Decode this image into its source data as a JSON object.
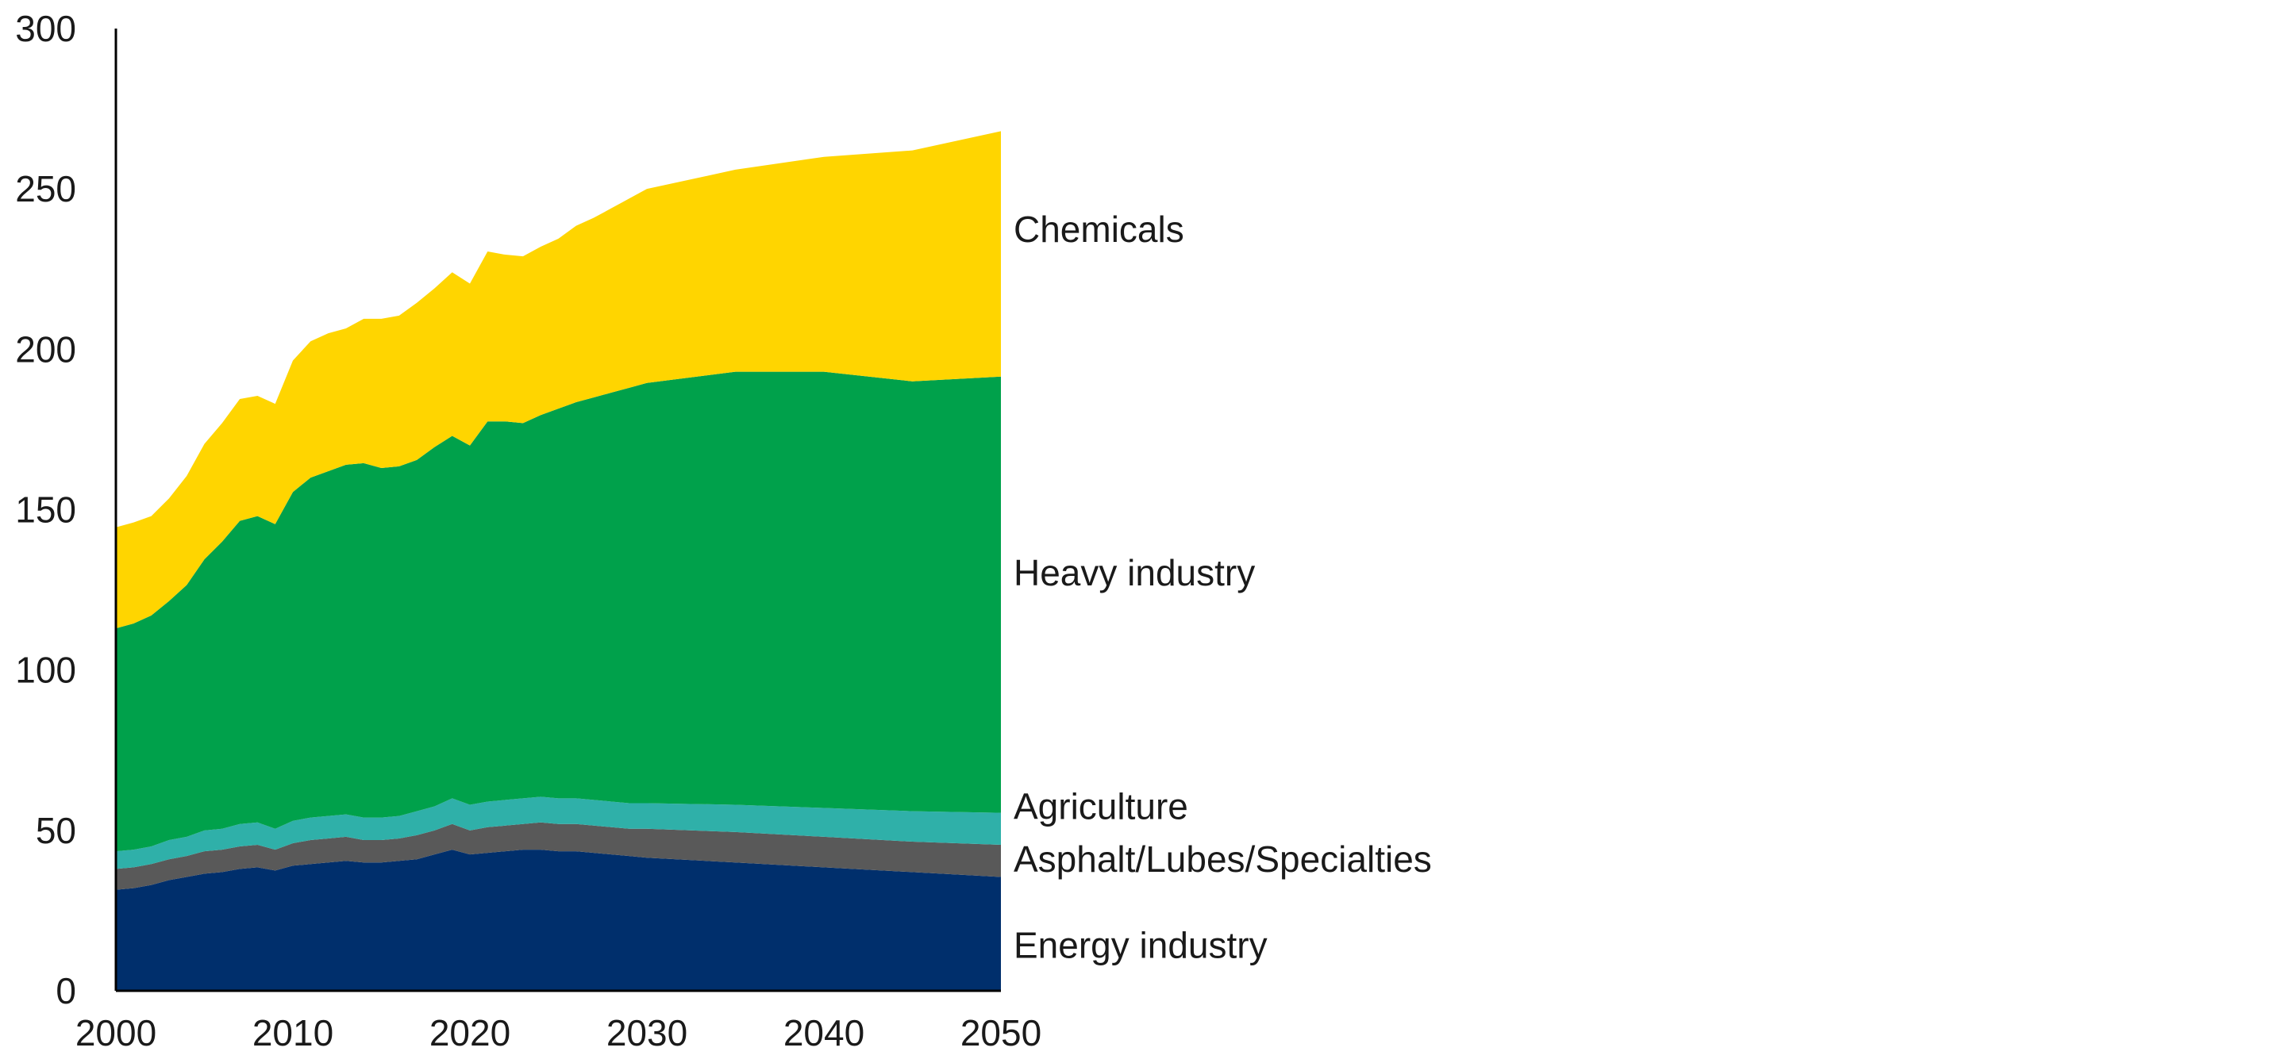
{
  "chart_data": {
    "type": "area",
    "stacked": true,
    "title": "",
    "xlabel": "",
    "ylabel": "",
    "xlim": [
      2000,
      2050
    ],
    "ylim": [
      0,
      300
    ],
    "grid": false,
    "legend": "direct labels at right end of areas",
    "x_ticks": [
      "2000",
      "2010",
      "2020",
      "2030",
      "2040",
      "2050"
    ],
    "y_ticks": [
      "0",
      "50",
      "100",
      "150",
      "200",
      "250",
      "300"
    ],
    "x_tick_values": [
      2000,
      2010,
      2020,
      2030,
      2040,
      2050
    ],
    "y_tick_values": [
      0,
      50,
      100,
      150,
      200,
      250,
      300
    ],
    "x": [
      2000,
      2001,
      2002,
      2003,
      2004,
      2005,
      2006,
      2007,
      2008,
      2009,
      2010,
      2011,
      2012,
      2013,
      2014,
      2015,
      2016,
      2017,
      2018,
      2019,
      2020,
      2021,
      2022,
      2023,
      2024,
      2025,
      2026,
      2027,
      2028,
      2029,
      2030,
      2035,
      2040,
      2045,
      2050
    ],
    "series": [
      {
        "name": "Energy industry",
        "color": "#002f6c",
        "values": [
          31.5,
          32,
          33,
          34.5,
          35.5,
          36.5,
          37,
          38,
          38.5,
          37.5,
          39,
          39.5,
          40,
          40.5,
          40,
          40,
          40.5,
          41,
          42.5,
          44,
          42.5,
          43,
          43.5,
          44,
          44,
          43.5,
          43.5,
          43,
          42.5,
          42,
          41.5,
          40,
          38.5,
          37,
          35.5
        ]
      },
      {
        "name": "Asphalt/Lubes/Specialties",
        "color": "#595959",
        "values": [
          6.5,
          6.5,
          6.5,
          6.5,
          6.5,
          7,
          7,
          7,
          7,
          6.5,
          7,
          7.5,
          7.5,
          7.5,
          7,
          7,
          7,
          7.5,
          7.5,
          8,
          7.5,
          8,
          8,
          8,
          8.5,
          8.5,
          8.5,
          8.5,
          8.5,
          8.5,
          9,
          9.5,
          9.5,
          9.5,
          10
        ]
      },
      {
        "name": "Agriculture",
        "color": "#2fb0a9",
        "values": [
          5.5,
          5.5,
          5.5,
          6,
          6,
          6.5,
          6.5,
          7,
          7,
          6.5,
          7,
          7,
          7,
          7,
          7,
          7,
          7,
          7.5,
          7.5,
          8,
          8,
          8,
          8,
          8,
          8,
          8,
          8,
          8,
          8,
          8,
          8,
          8.5,
          9,
          9.5,
          10
        ]
      },
      {
        "name": "Heavy industry",
        "color": "#00a14b",
        "values": [
          69.5,
          70.5,
          72,
          74.5,
          78.5,
          84.5,
          89.5,
          94.5,
          95.5,
          95,
          102.5,
          106,
          107.5,
          109,
          110.5,
          109,
          109,
          109.5,
          112,
          113,
          112,
          118.5,
          118,
          117,
          119,
          121.5,
          123.5,
          125.5,
          127.5,
          129.5,
          131,
          135,
          136,
          134,
          136
        ]
      },
      {
        "name": "Chemicals",
        "color": "#ffd500",
        "values": [
          31.5,
          31.5,
          31,
          32,
          34,
          36,
          37,
          38,
          37.5,
          37.5,
          41,
          42.5,
          43,
          42.5,
          45,
          46.5,
          47,
          49,
          49.5,
          51,
          50.5,
          53,
          52,
          52,
          52.5,
          53,
          55,
          56,
          57.5,
          59,
          60.5,
          63,
          67,
          72,
          76.5
        ]
      }
    ]
  }
}
